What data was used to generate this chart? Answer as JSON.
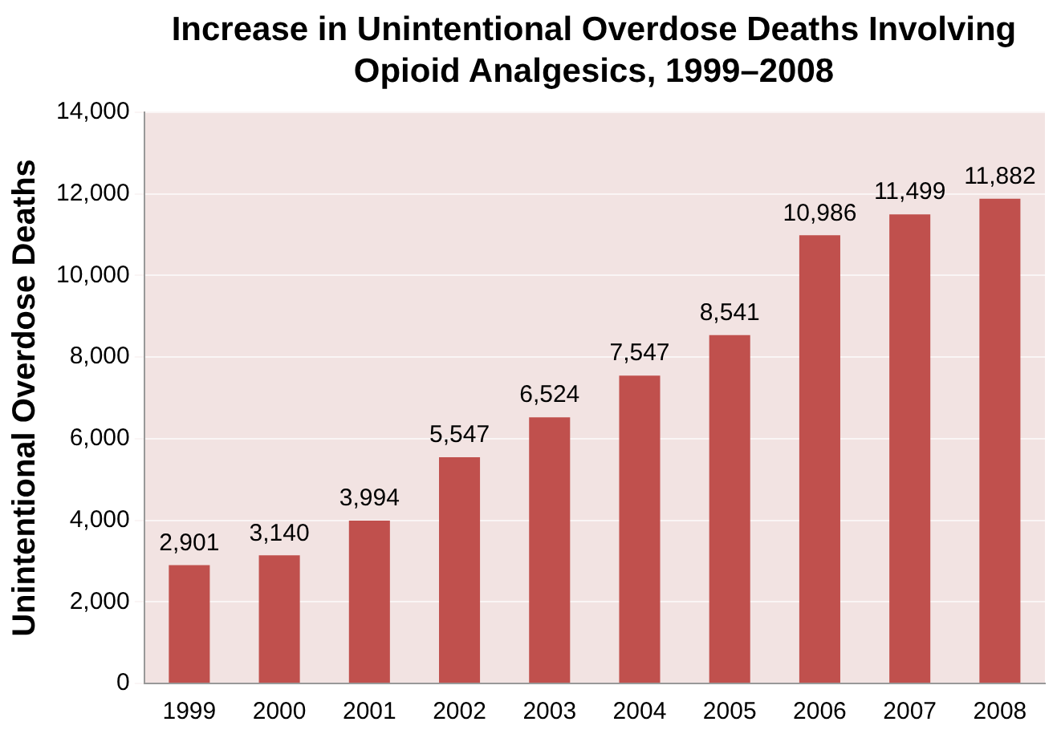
{
  "chart_data": {
    "type": "bar",
    "title": "Increase in Unintentional Overdose Deaths Involving Opioid Analgesics, 1999–2008",
    "ylabel": "Unintentional Overdose Deaths",
    "categories": [
      "1999",
      "2000",
      "2001",
      "2002",
      "2003",
      "2004",
      "2005",
      "2006",
      "2007",
      "2008"
    ],
    "values": [
      2901,
      3140,
      3994,
      5547,
      6524,
      7547,
      8541,
      10986,
      11499,
      11882
    ],
    "value_labels": [
      "2,901",
      "3,140",
      "3,994",
      "5,547",
      "6,524",
      "7,547",
      "8,541",
      "10,986",
      "11,499",
      "11,882"
    ],
    "color": "#c0504d",
    "ylim": [
      0,
      14000
    ],
    "yticks": [
      0,
      {
        "value": 2000,
        "label": "2,000"
      },
      {
        "value": 4000,
        "label": "4,000"
      },
      {
        "value": 6000,
        "label": "6,000"
      },
      {
        "value": 8000,
        "label": "8,000"
      },
      {
        "value": 10000,
        "label": "10,000"
      },
      {
        "value": 12000,
        "label": "12,000"
      },
      {
        "value": 14000,
        "label": "14,000"
      }
    ],
    "grid": "y",
    "legend": false
  }
}
